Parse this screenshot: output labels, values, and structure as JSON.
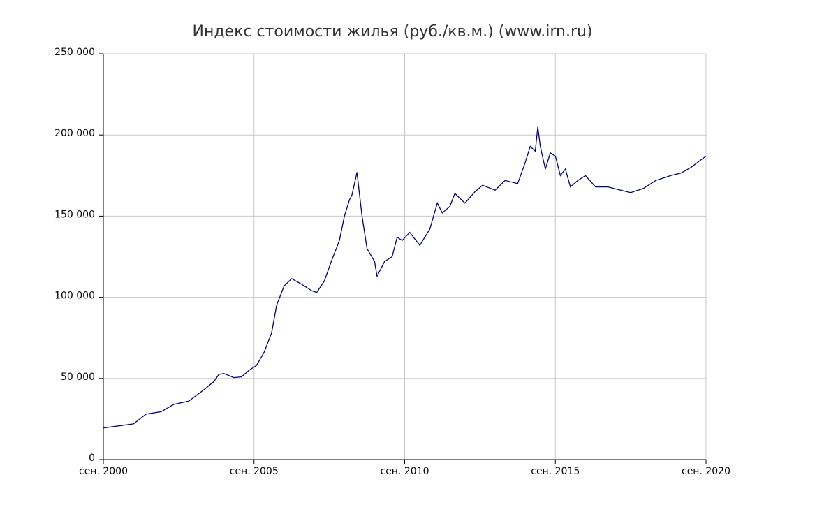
{
  "chart_data": {
    "type": "line",
    "title": "Индекс стоимости жилья (руб./кв.м.) (www.irn.ru)",
    "x": [
      "2000-09",
      "2001-09",
      "2002-02",
      "2002-08",
      "2003-01",
      "2003-07",
      "2004-01",
      "2004-05",
      "2004-07",
      "2004-09",
      "2005-01",
      "2005-04",
      "2005-07",
      "2005-10",
      "2006-01",
      "2006-04",
      "2006-06",
      "2006-09",
      "2006-12",
      "2007-04",
      "2007-08",
      "2007-10",
      "2008-01",
      "2008-04",
      "2008-07",
      "2008-09",
      "2008-11",
      "2008-12",
      "2009-02",
      "2009-04",
      "2009-06",
      "2009-09",
      "2009-10",
      "2010-01",
      "2010-04",
      "2010-06",
      "2010-08",
      "2010-11",
      "2011-03",
      "2011-07",
      "2011-10",
      "2011-12",
      "2012-03",
      "2012-05",
      "2012-09",
      "2013-01",
      "2013-04",
      "2013-09",
      "2014-01",
      "2014-06",
      "2014-09",
      "2014-11",
      "2015-01",
      "2015-02",
      "2015-03",
      "2015-05",
      "2015-07",
      "2015-09",
      "2015-11",
      "2016-01",
      "2016-03",
      "2016-06",
      "2016-09",
      "2017-01",
      "2017-06",
      "2017-11",
      "2018-03",
      "2018-08",
      "2019-01",
      "2019-07",
      "2019-11",
      "2020-03",
      "2020-06",
      "2020-09"
    ],
    "series": [
      {
        "color": "#000080",
        "values": [
          19500,
          22000,
          28000,
          29500,
          34000,
          36000,
          43000,
          48000,
          52500,
          53000,
          50500,
          51000,
          55000,
          58000,
          66000,
          78000,
          95000,
          107000,
          111500,
          108000,
          104000,
          103000,
          110000,
          123000,
          135000,
          150000,
          160000,
          163000,
          177000,
          150000,
          130000,
          122000,
          113000,
          122000,
          125000,
          137000,
          135000,
          140000,
          132000,
          142000,
          158000,
          152000,
          156000,
          164000,
          158000,
          165000,
          169000,
          166000,
          172000,
          170000,
          183000,
          193000,
          190000,
          205000,
          193000,
          179000,
          189000,
          187000,
          175000,
          179000,
          168000,
          172000,
          175000,
          168000,
          168000,
          166000,
          164500,
          167000,
          172000,
          175000,
          176500,
          180000,
          183500,
          187000
        ]
      }
    ],
    "xlim": [
      "2000-09",
      "2020-09"
    ],
    "xticks": [
      {
        "value": "2000-09",
        "label": "сен. 2000"
      },
      {
        "value": "2005-09",
        "label": "сен. 2005"
      },
      {
        "value": "2010-09",
        "label": "сен. 2010"
      },
      {
        "value": "2015-09",
        "label": "сен. 2015"
      },
      {
        "value": "2020-09",
        "label": "сен. 2020"
      }
    ],
    "ylim": [
      0,
      250000
    ],
    "yticks": [
      0,
      {
        "value": 50000,
        "label": "50 000"
      },
      {
        "value": 100000,
        "label": "100 000"
      },
      {
        "value": 150000,
        "label": "150 000"
      },
      {
        "value": 200000,
        "label": "200 000"
      },
      {
        "value": 250000,
        "label": "250 000"
      }
    ],
    "grid": true
  }
}
